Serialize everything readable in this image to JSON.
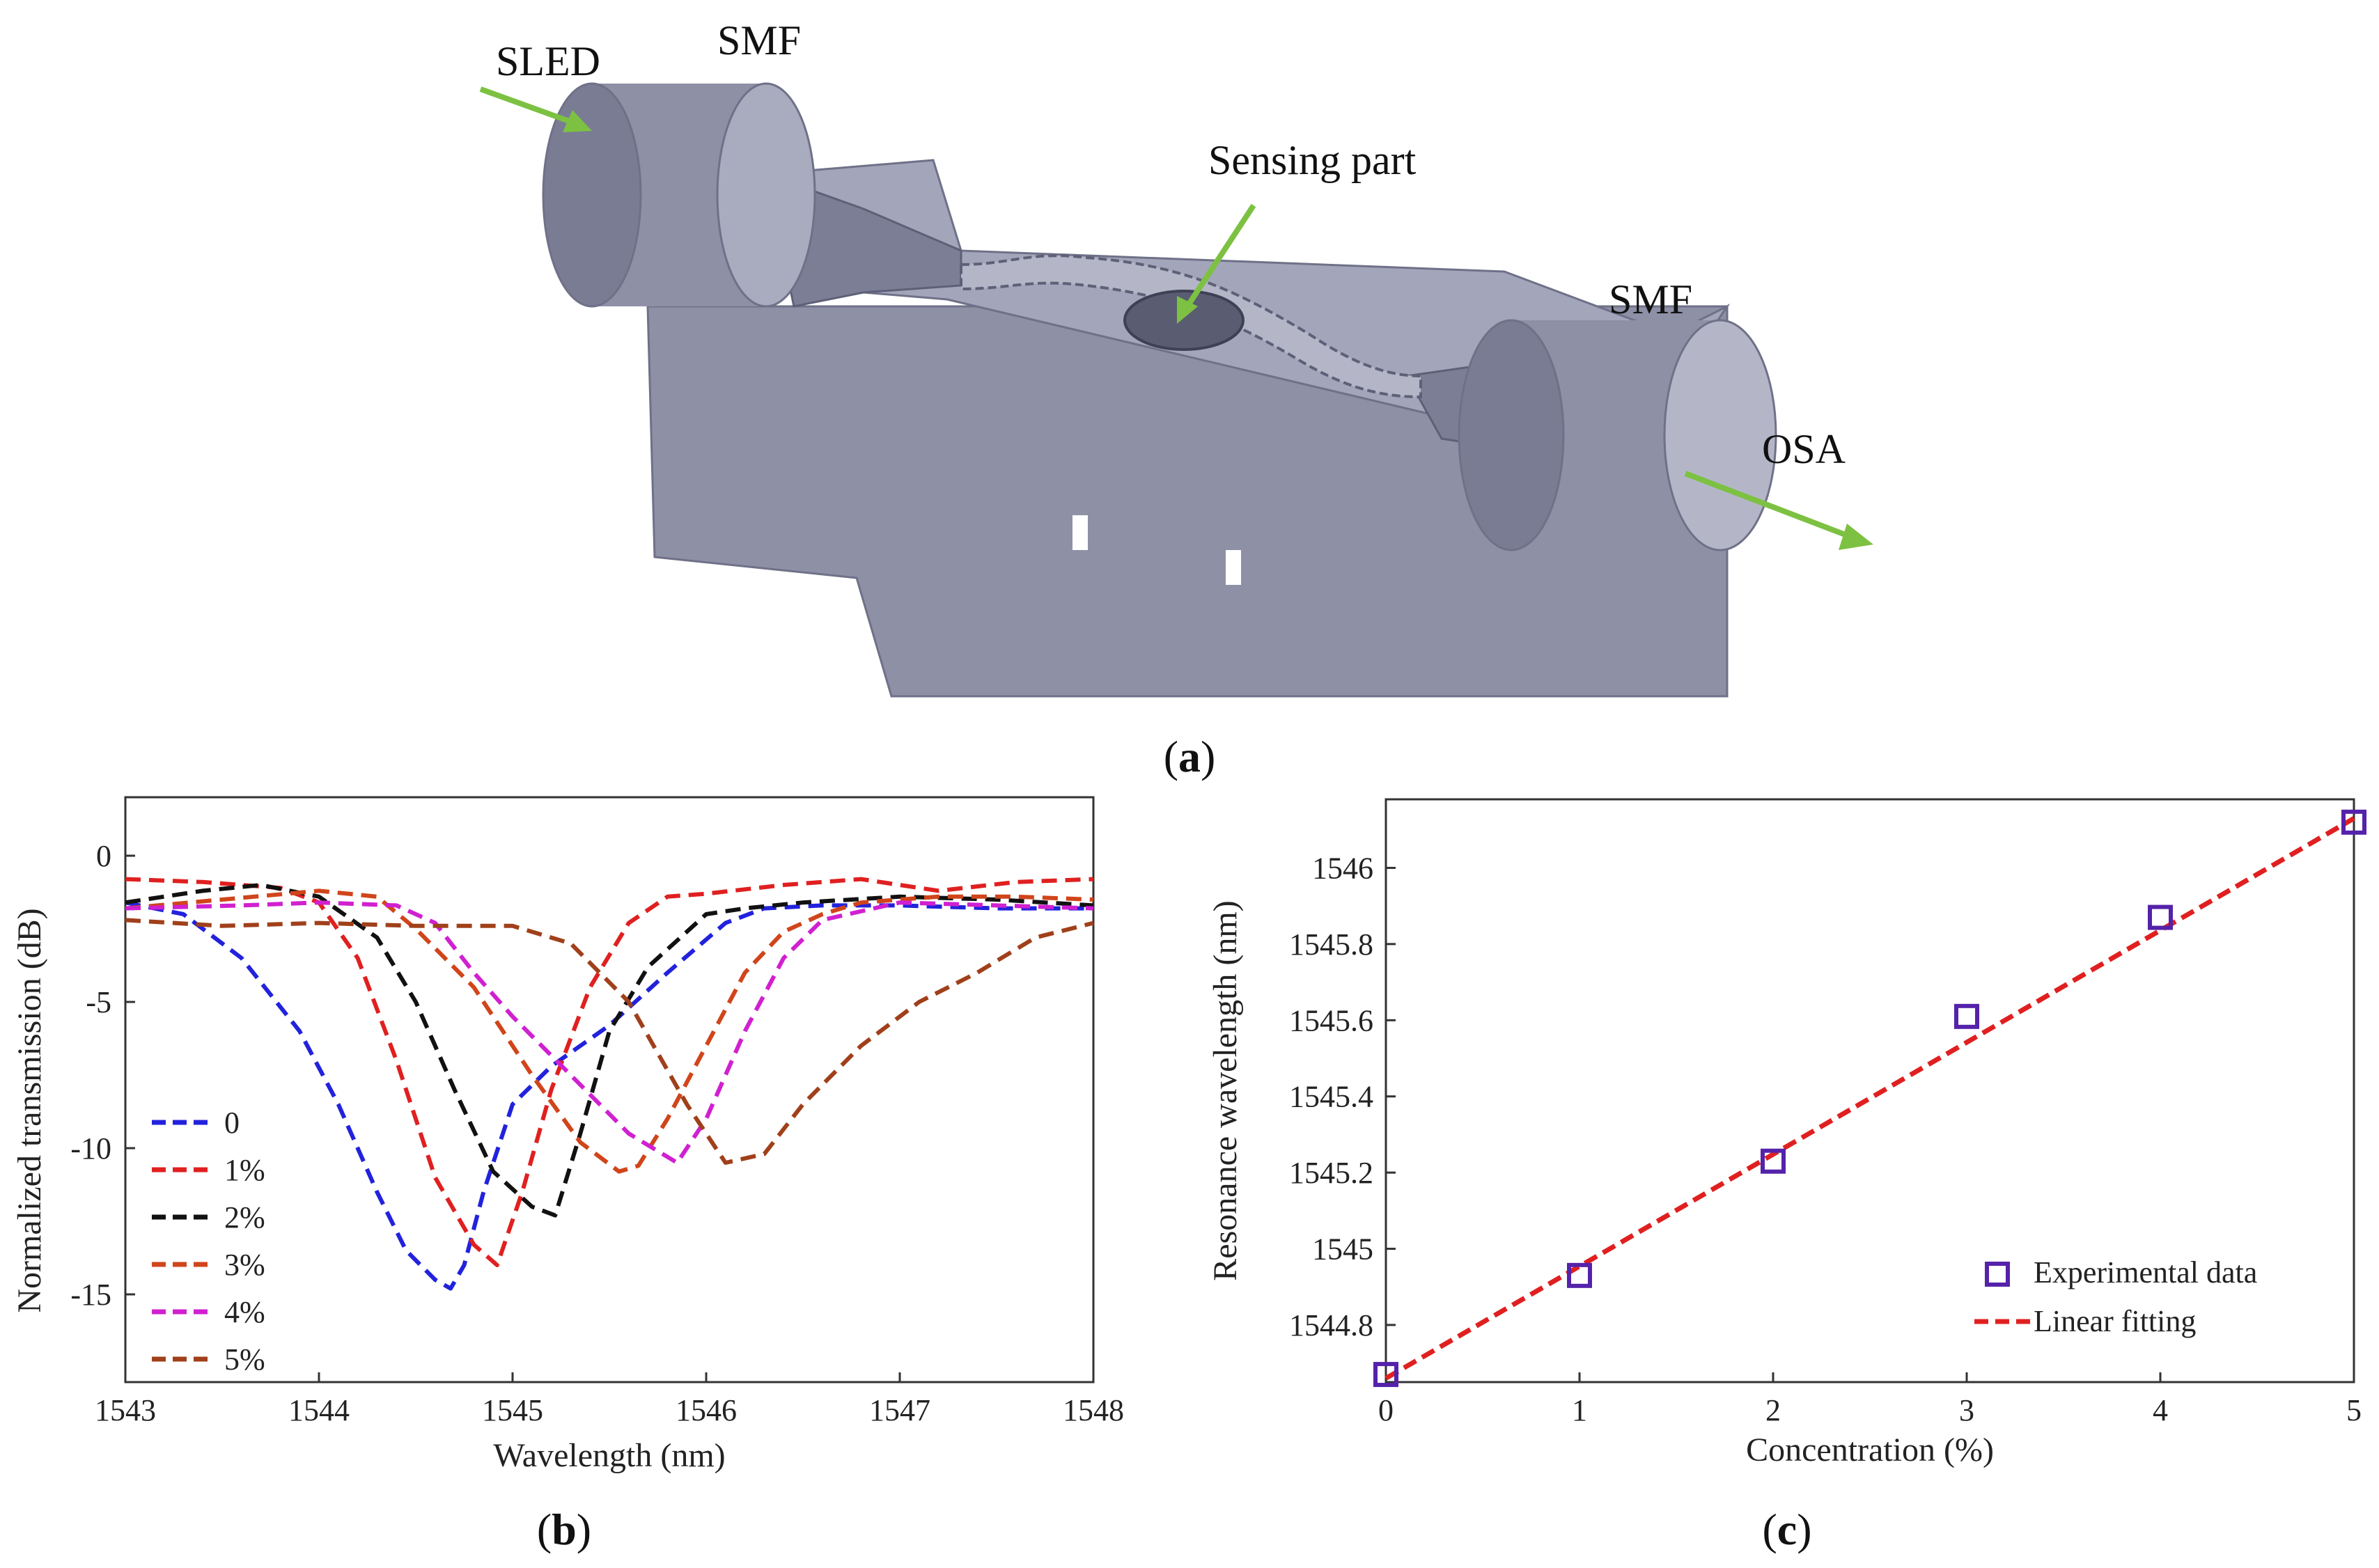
{
  "panel_a": {
    "label_open": "(",
    "label_letter": "a",
    "label_close": ")",
    "labels": {
      "sled": "SLED",
      "smf_left": "SMF",
      "sensing": "Sensing part",
      "smf_right": "SMF",
      "osa": "OSA"
    },
    "colors": {
      "body": "#8e90a6",
      "body_light": "#b4b6c8",
      "body_dark": "#6f7188",
      "arrow": "#7dc142"
    }
  },
  "panel_b": {
    "label_letter": "b",
    "chart_data": {
      "type": "line",
      "title": "",
      "xlabel": "Wavelength (nm)",
      "ylabel": "Normalized transmission (dB)",
      "xlim": [
        1543,
        1548
      ],
      "ylim": [
        -18,
        2
      ],
      "xticks": [
        1543,
        1544,
        1545,
        1546,
        1547,
        1548
      ],
      "yticks": [
        0,
        -5,
        -10,
        -15
      ],
      "legend_position": "bottom-left",
      "series": [
        {
          "name": "0",
          "color": "#2222dd",
          "x": [
            1543.0,
            1543.3,
            1543.6,
            1543.9,
            1544.1,
            1544.3,
            1544.45,
            1544.6,
            1544.68,
            1544.75,
            1544.85,
            1545.0,
            1545.2,
            1545.5,
            1545.8,
            1546.1,
            1546.3,
            1546.6,
            1547.0,
            1547.5,
            1548.0
          ],
          "y": [
            -1.6,
            -2.0,
            -3.5,
            -6.0,
            -8.5,
            -11.5,
            -13.5,
            -14.5,
            -14.8,
            -14.0,
            -11.5,
            -8.5,
            -7.2,
            -5.8,
            -4.0,
            -2.3,
            -1.8,
            -1.7,
            -1.7,
            -1.8,
            -1.8
          ]
        },
        {
          "name": "1%",
          "color": "#e02020",
          "x": [
            1543.0,
            1543.4,
            1543.8,
            1544.0,
            1544.2,
            1544.4,
            1544.6,
            1544.8,
            1544.92,
            1545.05,
            1545.2,
            1545.4,
            1545.6,
            1545.8,
            1546.0,
            1546.4,
            1546.8,
            1547.2,
            1547.6,
            1548.0
          ],
          "y": [
            -0.8,
            -0.9,
            -1.1,
            -1.6,
            -3.5,
            -7.0,
            -11.0,
            -13.3,
            -14.0,
            -11.5,
            -8.0,
            -4.5,
            -2.3,
            -1.4,
            -1.3,
            -1.0,
            -0.8,
            -1.2,
            -0.9,
            -0.8
          ]
        },
        {
          "name": "2%",
          "color": "#111111",
          "x": [
            1543.0,
            1543.4,
            1543.7,
            1544.0,
            1544.3,
            1544.5,
            1544.7,
            1544.9,
            1545.1,
            1545.22,
            1545.35,
            1545.5,
            1545.7,
            1546.0,
            1546.2,
            1546.5,
            1547.0,
            1547.5,
            1548.0
          ],
          "y": [
            -1.6,
            -1.2,
            -1.0,
            -1.4,
            -2.8,
            -5.0,
            -8.0,
            -10.8,
            -12.0,
            -12.3,
            -9.5,
            -6.0,
            -3.8,
            -2.0,
            -1.8,
            -1.6,
            -1.4,
            -1.5,
            -1.7
          ]
        },
        {
          "name": "3%",
          "color": "#d0451b",
          "x": [
            1543.0,
            1543.5,
            1544.0,
            1544.3,
            1544.5,
            1544.8,
            1545.1,
            1545.35,
            1545.55,
            1545.65,
            1545.8,
            1546.0,
            1546.2,
            1546.4,
            1546.6,
            1546.8,
            1547.2,
            1547.6,
            1548.0
          ],
          "y": [
            -1.8,
            -1.5,
            -1.2,
            -1.4,
            -2.5,
            -4.5,
            -7.5,
            -9.8,
            -10.8,
            -10.6,
            -9.0,
            -6.5,
            -4.0,
            -2.6,
            -2.0,
            -1.6,
            -1.4,
            -1.4,
            -1.5
          ]
        },
        {
          "name": "4%",
          "color": "#d020d0",
          "x": [
            1543.0,
            1543.6,
            1544.0,
            1544.4,
            1544.6,
            1544.8,
            1545.0,
            1545.3,
            1545.6,
            1545.85,
            1546.0,
            1546.2,
            1546.4,
            1546.6,
            1547.0,
            1547.5,
            1548.0
          ],
          "y": [
            -1.8,
            -1.7,
            -1.6,
            -1.7,
            -2.3,
            -4.0,
            -5.5,
            -7.5,
            -9.5,
            -10.5,
            -9.0,
            -6.0,
            -3.5,
            -2.2,
            -1.6,
            -1.7,
            -1.8
          ]
        },
        {
          "name": "5%",
          "color": "#a0401a",
          "x": [
            1543.0,
            1543.5,
            1544.0,
            1544.5,
            1545.0,
            1545.3,
            1545.6,
            1545.9,
            1546.1,
            1546.3,
            1546.5,
            1546.8,
            1547.1,
            1547.4,
            1547.7,
            1548.0
          ],
          "y": [
            -2.2,
            -2.4,
            -2.3,
            -2.4,
            -2.4,
            -3.0,
            -5.0,
            -8.5,
            -10.5,
            -10.2,
            -8.5,
            -6.5,
            -5.0,
            -4.0,
            -2.8,
            -2.3
          ]
        }
      ]
    }
  },
  "panel_c": {
    "label_letter": "c",
    "chart_data": {
      "type": "scatter",
      "title": "",
      "xlabel": "Concentration (%)",
      "ylabel": "Resonance wavelength (nm)",
      "xlim": [
        0,
        5
      ],
      "ylim": [
        1544.65,
        1546.18
      ],
      "xticks": [
        0,
        1,
        2,
        3,
        4,
        5
      ],
      "yticks": [
        1544.8,
        1545,
        1545.2,
        1545.4,
        1545.6,
        1545.8,
        1546
      ],
      "ytick_labels": [
        "1544.8",
        "1545",
        "1545.2",
        "1545.4",
        "1545.6",
        "1545.8",
        "1546"
      ],
      "legend_position": "bottom-right",
      "series": [
        {
          "name": "Experimental data",
          "kind": "markers",
          "color": "#5522aa",
          "x": [
            0,
            1,
            2,
            3,
            4,
            5
          ],
          "y": [
            1544.67,
            1544.93,
            1545.23,
            1545.61,
            1545.87,
            1546.12
          ]
        },
        {
          "name": "Linear fitting",
          "kind": "line",
          "color": "#e02020",
          "x": [
            0,
            5
          ],
          "y": [
            1544.66,
            1546.13
          ]
        }
      ]
    }
  }
}
